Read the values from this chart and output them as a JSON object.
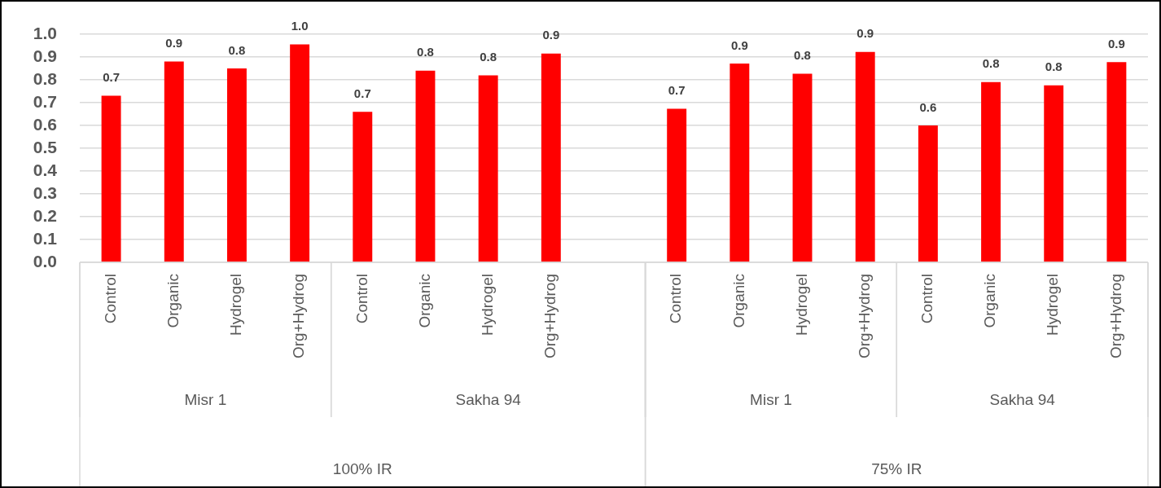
{
  "chart_data": {
    "type": "bar",
    "categories": [
      "Control",
      "Organic",
      "Hydrogel",
      "Org+Hydrog",
      "Control",
      "Organic",
      "Hydrogel",
      "Org+Hydrog",
      null,
      "Control",
      "Organic",
      "Hydrogel",
      "Org+Hydrog",
      "Control",
      "Organic",
      "Hydrogel",
      "Org+Hydrog"
    ],
    "values": [
      0.73,
      0.88,
      0.85,
      0.955,
      0.66,
      0.84,
      0.82,
      0.915,
      null,
      0.673,
      0.871,
      0.827,
      0.922,
      0.6,
      0.79,
      0.776,
      0.878
    ],
    "value_labels": [
      "0.7",
      "0.9",
      "0.8",
      "1.0",
      "0.7",
      "0.8",
      "0.8",
      "0.9",
      null,
      "0.7",
      "0.9",
      "0.8",
      "0.9",
      "0.6",
      "0.8",
      "0.8",
      "0.9"
    ],
    "color": "#ff0000",
    "ylim": [
      0,
      1
    ],
    "yticks": [
      {
        "value": 0,
        "label": "0.0"
      },
      {
        "value": 0.1,
        "label": "0.1"
      },
      {
        "value": 0.2,
        "label": "0.2"
      },
      {
        "value": 0.3,
        "label": "0.3"
      },
      {
        "value": 0.4,
        "label": "0.4"
      },
      {
        "value": 0.5,
        "label": "0.5"
      },
      {
        "value": 0.6,
        "label": "0.6"
      },
      {
        "value": 0.7,
        "label": "0.7"
      },
      {
        "value": 0.8,
        "label": "0.8"
      },
      {
        "value": 0.9,
        "label": "0.9"
      },
      {
        "value": 1,
        "label": "1.0"
      }
    ],
    "grid": "y",
    "legend": false,
    "annotations": [
      "Misr 1",
      "Sakha 94",
      "Misr 1",
      "Sakha 94",
      "100% IR",
      "75% IR"
    ]
  }
}
